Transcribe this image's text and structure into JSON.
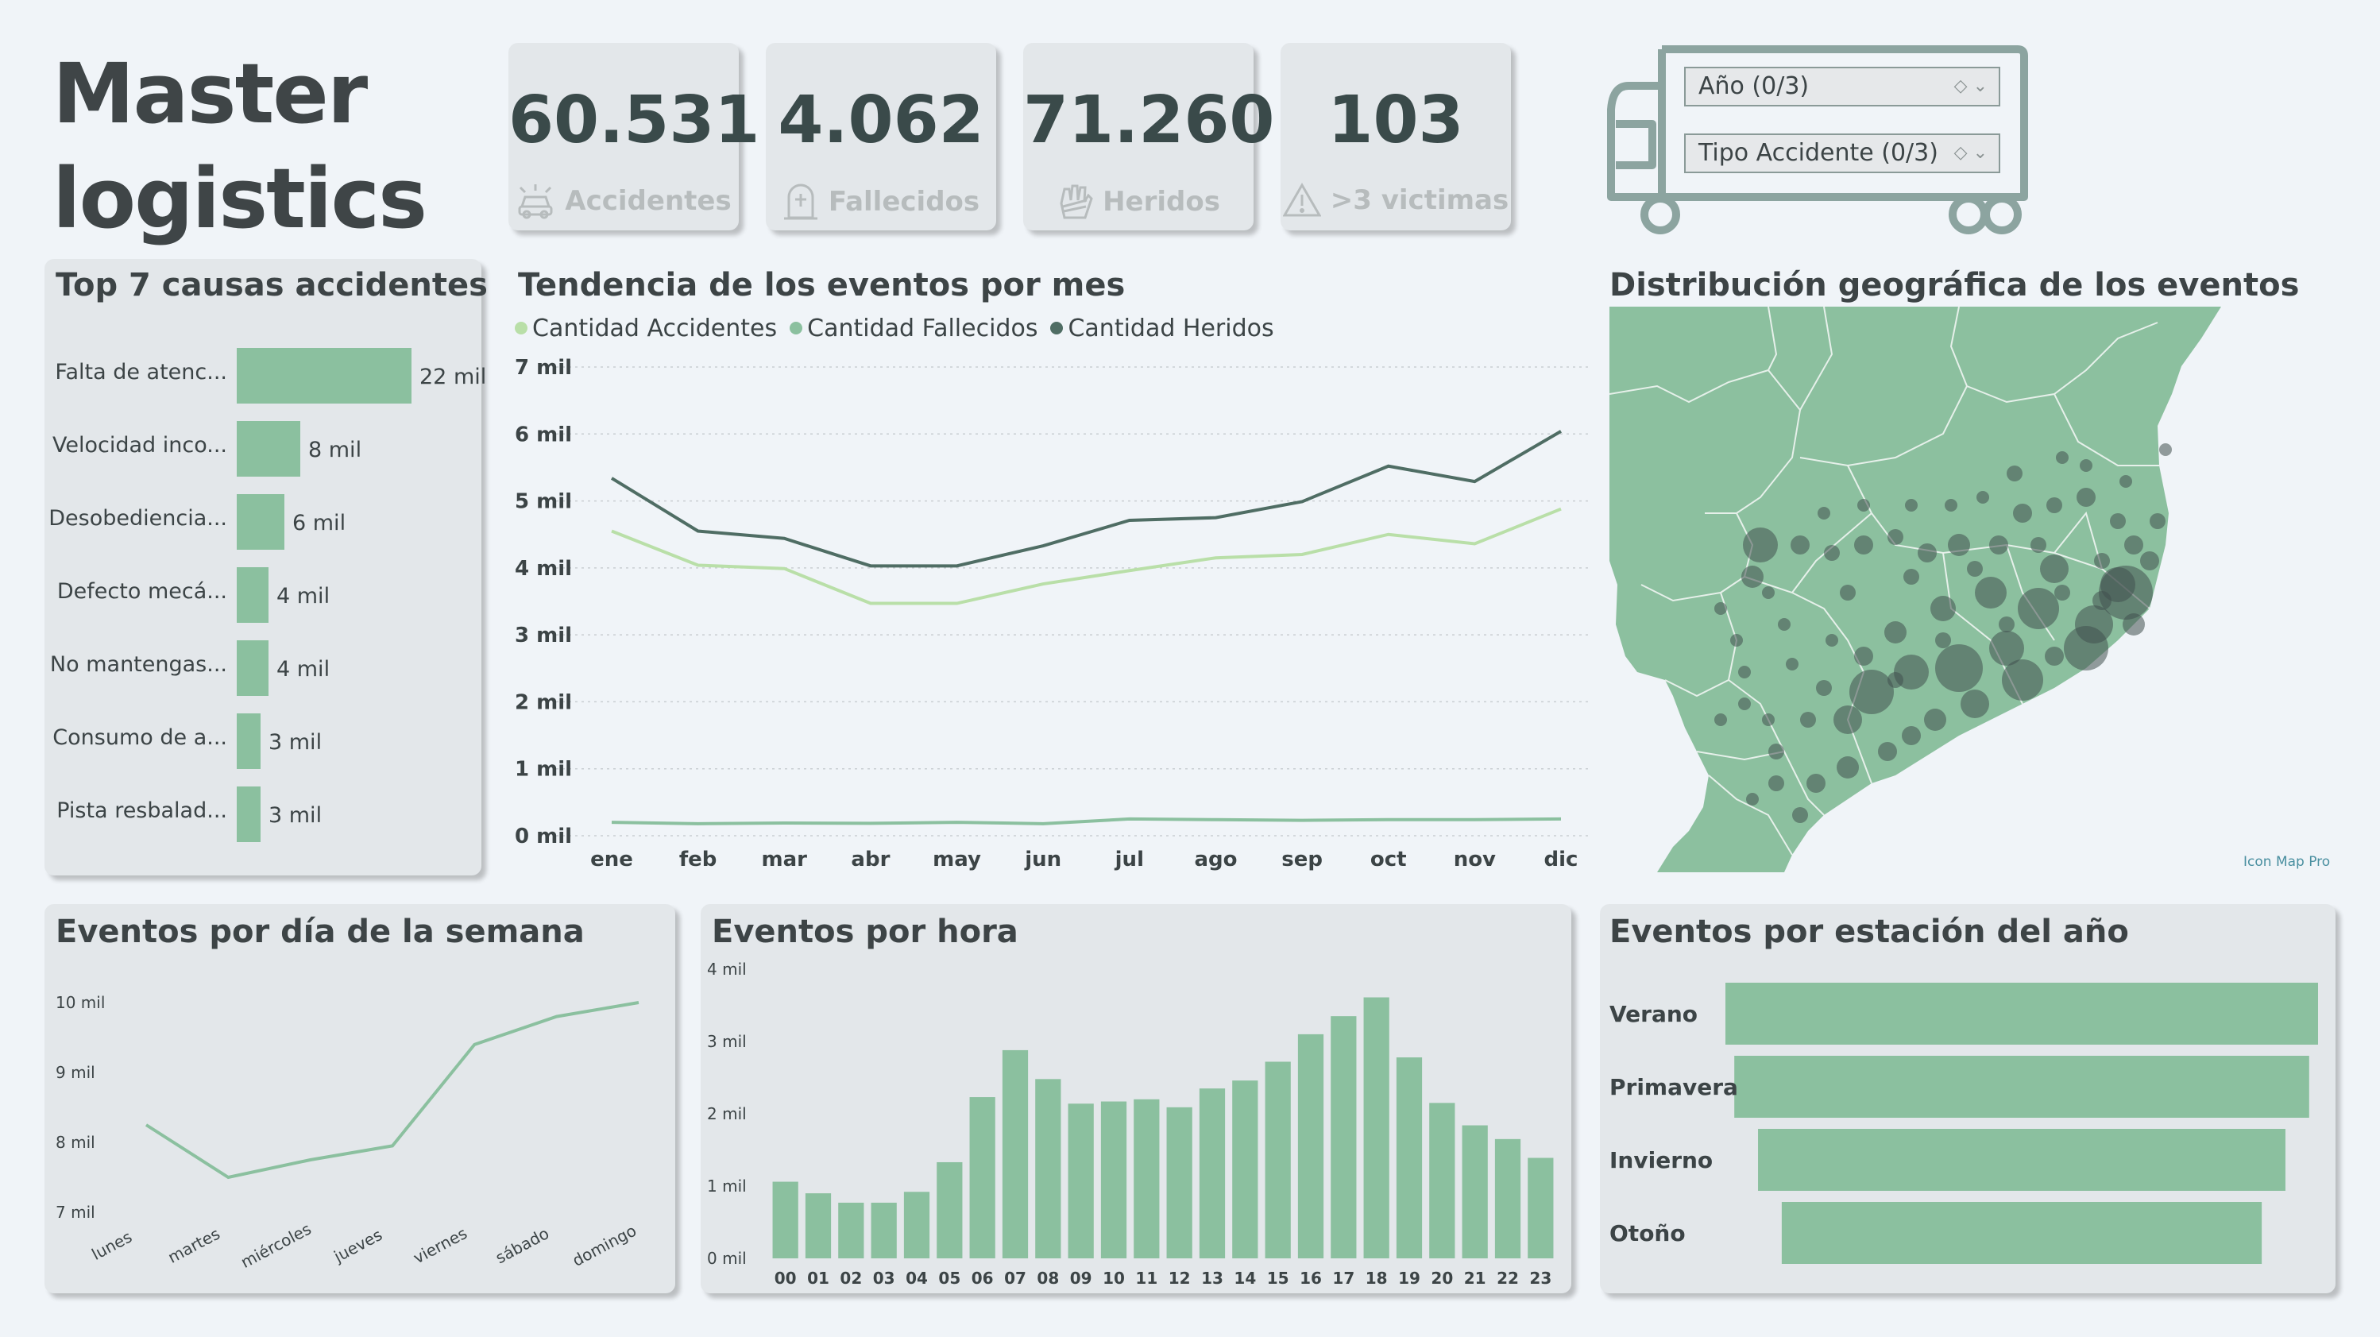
{
  "brand": {
    "line1": "Master",
    "line2": "logistics"
  },
  "kpis": [
    {
      "value": "60.531",
      "label": "Accidentes",
      "icon": "car-crash-icon"
    },
    {
      "value": "4.062",
      "label": "Fallecidos",
      "icon": "tombstone-icon"
    },
    {
      "value": "71.260",
      "label": "Heridos",
      "icon": "bandaged-hand-icon"
    },
    {
      "value": "103",
      "label": ">3 victimas",
      "icon": "warning-triangle-icon"
    }
  ],
  "slicers": [
    {
      "label": "Año (0/3)"
    },
    {
      "label": "Tipo Accidente (0/3)"
    }
  ],
  "titles": {
    "causes": "Top 7 causas accidentes",
    "trend": "Tendencia de los eventos por mes",
    "geo": "Distribución geográfica de los eventos",
    "weekday": "Eventos por día de la semana",
    "hour": "Eventos por hora",
    "season": "Eventos por estación del año"
  },
  "map_credit": "Icon Map Pro",
  "colors": {
    "light_green": "#8bc09f",
    "pale_green": "#b9dfa8",
    "dark_green": "#4f6d64",
    "bubble": "#42504f",
    "map_land": "#8cc09f"
  },
  "chart_data": [
    {
      "id": "causes",
      "type": "bar",
      "orientation": "horizontal",
      "categories": [
        "Falta de atenc...",
        "Velocidad inco...",
        "Desobediencia...",
        "Defecto mecá...",
        "No mantengas...",
        "Consumo de a...",
        "Pista resbalad..."
      ],
      "values": [
        22,
        8,
        6,
        4,
        4,
        3,
        3
      ],
      "value_labels": [
        "22 mil",
        "8 mil",
        "6 mil",
        "4 mil",
        "4 mil",
        "3 mil",
        "3 mil"
      ]
    },
    {
      "id": "trend",
      "type": "line",
      "categories": [
        "ene",
        "feb",
        "mar",
        "abr",
        "may",
        "jun",
        "jul",
        "ago",
        "sep",
        "oct",
        "nov",
        "dic"
      ],
      "yticks": [
        "0 mil",
        "1 mil",
        "2 mil",
        "3 mil",
        "4 mil",
        "5 mil",
        "6 mil",
        "7 mil"
      ],
      "ylim": [
        0,
        7000
      ],
      "series": [
        {
          "name": "Cantidad Accidentes",
          "color": "#b9dfa8",
          "values": [
            4550,
            4040,
            3990,
            3470,
            3470,
            3760,
            3960,
            4150,
            4200,
            4500,
            4360,
            4880
          ]
        },
        {
          "name": "Cantidad Fallecidos",
          "color": "#8bc09f",
          "values": [
            200,
            180,
            190,
            185,
            200,
            180,
            250,
            240,
            230,
            240,
            240,
            250
          ]
        },
        {
          "name": "Cantidad Heridos",
          "color": "#4f6d64",
          "values": [
            5340,
            4550,
            4440,
            4030,
            4030,
            4330,
            4710,
            4750,
            4990,
            5520,
            5290,
            6040
          ]
        }
      ]
    },
    {
      "id": "weekday",
      "type": "line",
      "categories": [
        "lunes",
        "martes",
        "miércoles",
        "jueves",
        "viernes",
        "sábado",
        "domingo"
      ],
      "yticks": [
        "7 mil",
        "8 mil",
        "9 mil",
        "10 mil"
      ],
      "ylim": [
        7000,
        10000
      ],
      "values": [
        8250,
        7500,
        7750,
        7950,
        9400,
        9800,
        10000
      ]
    },
    {
      "id": "hour",
      "type": "bar",
      "categories": [
        "00",
        "01",
        "02",
        "03",
        "04",
        "05",
        "06",
        "07",
        "08",
        "09",
        "10",
        "11",
        "12",
        "13",
        "14",
        "15",
        "16",
        "17",
        "18",
        "19",
        "20",
        "21",
        "22",
        "23"
      ],
      "yticks": [
        "0 mil",
        "1 mil",
        "2 mil",
        "3 mil",
        "4 mil"
      ],
      "ylim": [
        0,
        4000
      ],
      "values": [
        1060,
        900,
        770,
        770,
        920,
        1330,
        2230,
        2880,
        2480,
        2140,
        2170,
        2200,
        2090,
        2350,
        2460,
        2720,
        3100,
        3350,
        3610,
        2780,
        2150,
        1840,
        1650,
        1390
      ]
    },
    {
      "id": "season",
      "type": "bar",
      "orientation": "funnel",
      "categories": [
        "Verano",
        "Primavera",
        "Invierno",
        "Otoño"
      ],
      "values": [
        100,
        97,
        89,
        81
      ]
    }
  ]
}
